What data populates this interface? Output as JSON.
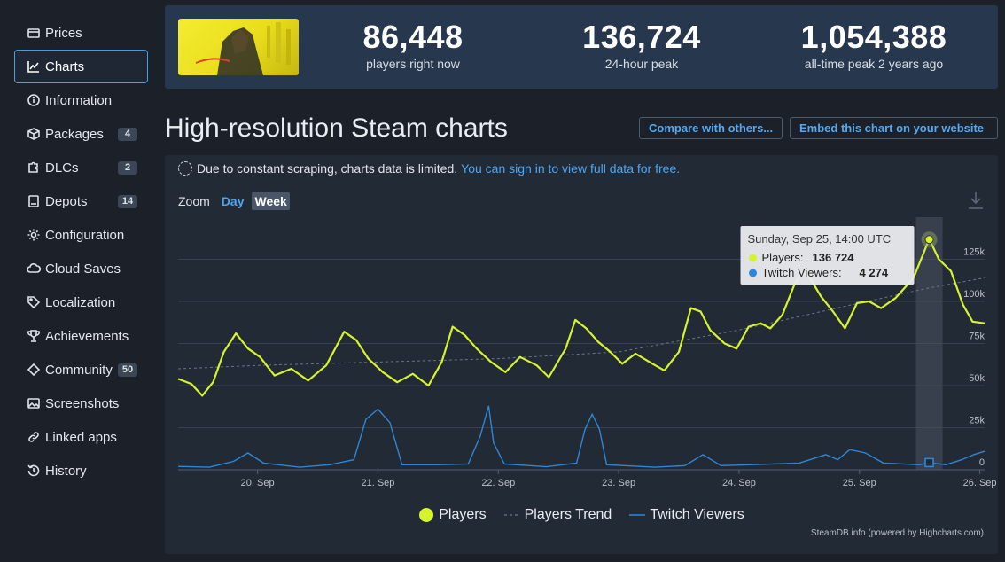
{
  "sidebar": {
    "items": [
      {
        "label": "Prices",
        "icon": "wallet-icon"
      },
      {
        "label": "Charts",
        "icon": "chart-line-icon",
        "active": true
      },
      {
        "label": "Information",
        "icon": "info-icon"
      },
      {
        "label": "Packages",
        "icon": "box-icon",
        "badge": "4"
      },
      {
        "label": "DLCs",
        "icon": "puzzle-icon",
        "badge": "2"
      },
      {
        "label": "Depots",
        "icon": "file-icon",
        "badge": "14"
      },
      {
        "label": "Configuration",
        "icon": "gear-icon"
      },
      {
        "label": "Cloud Saves",
        "icon": "cloud-icon"
      },
      {
        "label": "Localization",
        "icon": "tag-icon"
      },
      {
        "label": "Achievements",
        "icon": "trophy-icon"
      },
      {
        "label": "Community",
        "icon": "diamond-icon",
        "badge": "50"
      },
      {
        "label": "Screenshots",
        "icon": "image-icon"
      },
      {
        "label": "Linked apps",
        "icon": "link-icon"
      },
      {
        "label": "History",
        "icon": "history-icon"
      }
    ]
  },
  "stats": {
    "current": {
      "value": "86,448",
      "label": "players right now"
    },
    "peak24": {
      "value": "136,724",
      "label": "24-hour peak"
    },
    "alltime": {
      "value": "1,054,388",
      "label": "all-time peak 2 years ago"
    }
  },
  "page": {
    "title": "High-resolution Steam charts",
    "compare_button": "Compare with others...",
    "embed_button": "Embed this chart on your website"
  },
  "notice": {
    "text": "Due to constant scraping, charts data is limited.",
    "link": "You can sign in to view full data for free."
  },
  "zoom": {
    "label": "Zoom",
    "day": "Day",
    "week": "Week"
  },
  "tooltip": {
    "title": "Sunday, Sep 25, 14:00 UTC",
    "players_label": "Players:",
    "players_value": "136 724",
    "twitch_label": "Twitch Viewers:",
    "twitch_value": "4 274"
  },
  "legend": {
    "players": "Players",
    "trend": "Players Trend",
    "twitch": "Twitch Viewers"
  },
  "credit": "SteamDB.info (powered by Highcharts.com)",
  "colors": {
    "players": "#d5f32f",
    "twitch": "#2f86d6",
    "trend": "#5a6575",
    "accent": "#4ba7f2"
  },
  "chart_data": {
    "type": "line",
    "x_ticks": [
      "20. Sep",
      "21. Sep",
      "22. Sep",
      "23. Sep",
      "24. Sep",
      "25. Sep",
      "26. Sep"
    ],
    "y_ticks": [
      "0",
      "25k",
      "50k",
      "75k",
      "100k",
      "125k"
    ],
    "ylim": [
      0,
      150000
    ],
    "x_range_days": [
      19.34,
      26.04
    ],
    "highlight_x": 25.58,
    "series": [
      {
        "name": "Players",
        "points": [
          [
            19.34,
            54000
          ],
          [
            19.45,
            51000
          ],
          [
            19.54,
            44000
          ],
          [
            19.63,
            52000
          ],
          [
            19.72,
            70000
          ],
          [
            19.82,
            81000
          ],
          [
            19.92,
            72000
          ],
          [
            20.02,
            67000
          ],
          [
            20.14,
            56000
          ],
          [
            20.28,
            60000
          ],
          [
            20.42,
            53000
          ],
          [
            20.57,
            62000
          ],
          [
            20.72,
            82000
          ],
          [
            20.82,
            77000
          ],
          [
            20.92,
            66000
          ],
          [
            21.04,
            58000
          ],
          [
            21.16,
            52000
          ],
          [
            21.29,
            57000
          ],
          [
            21.42,
            50000
          ],
          [
            21.53,
            64000
          ],
          [
            21.62,
            85000
          ],
          [
            21.72,
            80000
          ],
          [
            21.82,
            72000
          ],
          [
            21.94,
            64000
          ],
          [
            22.06,
            58000
          ],
          [
            22.18,
            67000
          ],
          [
            22.32,
            62000
          ],
          [
            22.42,
            55000
          ],
          [
            22.56,
            72000
          ],
          [
            22.64,
            89000
          ],
          [
            22.73,
            84000
          ],
          [
            22.83,
            76000
          ],
          [
            22.93,
            70000
          ],
          [
            23.03,
            63000
          ],
          [
            23.14,
            69000
          ],
          [
            23.28,
            63000
          ],
          [
            23.38,
            59000
          ],
          [
            23.5,
            70000
          ],
          [
            23.6,
            96000
          ],
          [
            23.68,
            94000
          ],
          [
            23.76,
            83000
          ],
          [
            23.88,
            75000
          ],
          [
            23.98,
            72000
          ],
          [
            24.08,
            85000
          ],
          [
            24.18,
            87000
          ],
          [
            24.26,
            84000
          ],
          [
            24.36,
            92000
          ],
          [
            24.46,
            110000
          ],
          [
            24.52,
            117000
          ],
          [
            24.58,
            115000
          ],
          [
            24.68,
            103000
          ],
          [
            24.78,
            94000
          ],
          [
            24.88,
            84000
          ],
          [
            24.98,
            99000
          ],
          [
            25.08,
            100000
          ],
          [
            25.18,
            96000
          ],
          [
            25.3,
            102000
          ],
          [
            25.45,
            114000
          ],
          [
            25.58,
            137000
          ],
          [
            25.66,
            125000
          ],
          [
            25.76,
            118000
          ],
          [
            25.86,
            98000
          ],
          [
            25.94,
            88000
          ],
          [
            26.04,
            87000
          ]
        ]
      },
      {
        "name": "Players Trend",
        "points": [
          [
            19.34,
            60000
          ],
          [
            20.0,
            62000
          ],
          [
            21.0,
            64000
          ],
          [
            22.0,
            66000
          ],
          [
            23.0,
            70000
          ],
          [
            24.0,
            83000
          ],
          [
            25.0,
            99000
          ],
          [
            25.58,
            108000
          ],
          [
            26.04,
            114000
          ]
        ]
      },
      {
        "name": "Twitch Viewers",
        "points": [
          [
            19.34,
            2000
          ],
          [
            19.6,
            1500
          ],
          [
            19.8,
            5000
          ],
          [
            19.92,
            10000
          ],
          [
            20.05,
            4000
          ],
          [
            20.35,
            1500
          ],
          [
            20.6,
            3000
          ],
          [
            20.8,
            6000
          ],
          [
            20.9,
            30000
          ],
          [
            21.0,
            36000
          ],
          [
            21.1,
            28000
          ],
          [
            21.2,
            3000
          ],
          [
            21.5,
            3000
          ],
          [
            21.75,
            3500
          ],
          [
            21.85,
            20000
          ],
          [
            21.92,
            38000
          ],
          [
            21.96,
            16000
          ],
          [
            22.05,
            3500
          ],
          [
            22.4,
            1800
          ],
          [
            22.65,
            4000
          ],
          [
            22.72,
            24000
          ],
          [
            22.78,
            33000
          ],
          [
            22.84,
            24000
          ],
          [
            22.9,
            3000
          ],
          [
            23.3,
            1500
          ],
          [
            23.55,
            2500
          ],
          [
            23.7,
            9000
          ],
          [
            23.85,
            2500
          ],
          [
            24.1,
            3000
          ],
          [
            24.5,
            4000
          ],
          [
            24.72,
            9000
          ],
          [
            24.82,
            6000
          ],
          [
            24.92,
            12000
          ],
          [
            25.05,
            10000
          ],
          [
            25.2,
            4000
          ],
          [
            25.5,
            3000
          ],
          [
            25.58,
            4274
          ],
          [
            25.72,
            3000
          ],
          [
            25.85,
            6000
          ],
          [
            25.95,
            9000
          ],
          [
            26.04,
            11000
          ]
        ]
      }
    ]
  }
}
